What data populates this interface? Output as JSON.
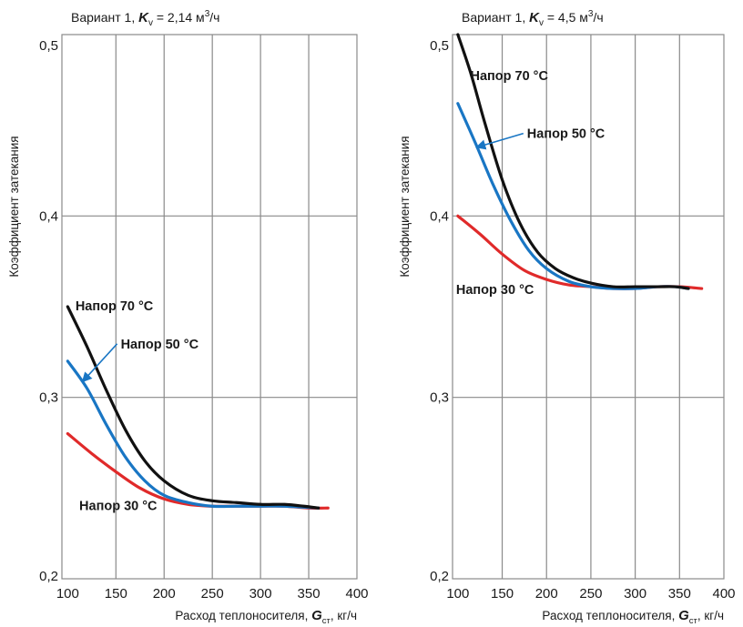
{
  "colors": {
    "series_30": "#e02a2a",
    "series_50": "#1976c4",
    "series_70": "#111111",
    "grid": "#8a8a8a"
  },
  "chart_data": [
    {
      "type": "line",
      "title": "Вариант 1, K",
      "title_parts": {
        "prefix": "Вариант 1, ",
        "var": "K",
        "sub": "v",
        "value": " = 2,14 м",
        "sup": "3",
        "unit": "/ч"
      },
      "xlabel_parts": {
        "prefix": "Расход теплоносителя, ",
        "var": "G",
        "sub": "ст",
        "unit": ", кг/ч"
      },
      "ylabel": "Коэффициент затекания",
      "xlim": [
        94,
        400
      ],
      "ylim": [
        0.2,
        0.5
      ],
      "xticks": [
        "100",
        "150",
        "200",
        "250",
        "300",
        "350",
        "400"
      ],
      "yticks": [
        "0,2",
        "0,3",
        "0,4",
        "0,5"
      ],
      "grid": true,
      "series": [
        {
          "name": "Напор 30 °C",
          "color_key": "series_30",
          "x": [
            100,
            125,
            150,
            175,
            200,
            225,
            250,
            275,
            300,
            325,
            350,
            370
          ],
          "y": [
            0.28,
            0.269,
            0.259,
            0.25,
            0.244,
            0.241,
            0.24,
            0.24,
            0.24,
            0.24,
            0.239,
            0.239
          ]
        },
        {
          "name": "Напор 50 °C",
          "color_key": "series_50",
          "x": [
            100,
            120,
            140,
            160,
            180,
            200,
            225,
            250,
            275,
            300,
            325,
            360
          ],
          "y": [
            0.32,
            0.305,
            0.285,
            0.267,
            0.254,
            0.246,
            0.242,
            0.24,
            0.24,
            0.24,
            0.24,
            0.239
          ]
        },
        {
          "name": "Напор 70 °C",
          "color_key": "series_70",
          "x": [
            100,
            120,
            140,
            160,
            180,
            200,
            225,
            250,
            275,
            300,
            325,
            345,
            360
          ],
          "y": [
            0.35,
            0.328,
            0.304,
            0.282,
            0.265,
            0.254,
            0.246,
            0.243,
            0.242,
            0.241,
            0.241,
            0.24,
            0.239
          ]
        }
      ],
      "annotations": [
        {
          "text": "Напор 70 °C",
          "x": 108,
          "y": 0.348
        },
        {
          "text": "Напор 50 °C",
          "x": 155,
          "y": 0.327,
          "arrow_to": [
            116,
            0.309
          ]
        },
        {
          "text": "Напор 30 °C",
          "x": 112,
          "y": 0.238
        }
      ]
    },
    {
      "type": "line",
      "title": "Вариант 1, K",
      "title_parts": {
        "prefix": "Вариант 1, ",
        "var": "K",
        "sub": "v",
        "value": " = 4,5 м",
        "sup": "3",
        "unit": "/ч"
      },
      "xlabel_parts": {
        "prefix": "Расход теплоносителя, ",
        "var": "G",
        "sub": "ст",
        "unit": ", кг/ч"
      },
      "ylabel": "Коэффициент затекания",
      "xlim": [
        94,
        400
      ],
      "ylim": [
        0.2,
        0.5
      ],
      "xticks": [
        "100",
        "150",
        "200",
        "250",
        "300",
        "350",
        "400"
      ],
      "yticks": [
        "0,2",
        "0,3",
        "0,4",
        "0,5"
      ],
      "grid": true,
      "series": [
        {
          "name": "Напор 30 °C",
          "color_key": "series_30",
          "x": [
            100,
            125,
            150,
            175,
            200,
            225,
            250,
            275,
            300,
            325,
            350,
            375
          ],
          "y": [
            0.4,
            0.39,
            0.379,
            0.37,
            0.365,
            0.362,
            0.361,
            0.36,
            0.36,
            0.361,
            0.361,
            0.36
          ]
        },
        {
          "name": "Напор 50 °C",
          "color_key": "series_50",
          "x": [
            100,
            120,
            140,
            160,
            180,
            200,
            225,
            250,
            275,
            300,
            325,
            345,
            360
          ],
          "y": [
            0.462,
            0.44,
            0.417,
            0.397,
            0.381,
            0.371,
            0.364,
            0.361,
            0.36,
            0.36,
            0.361,
            0.361,
            0.36
          ]
        },
        {
          "name": "Напор 70 °C",
          "color_key": "series_70",
          "x": [
            100,
            115,
            130,
            150,
            170,
            190,
            210,
            230,
            250,
            275,
            300,
            325,
            345,
            360
          ],
          "y": [
            0.5,
            0.478,
            0.452,
            0.42,
            0.396,
            0.38,
            0.371,
            0.366,
            0.363,
            0.361,
            0.361,
            0.361,
            0.361,
            0.36
          ]
        }
      ],
      "annotations": [
        {
          "text": "Напор 70 °C",
          "x": 114,
          "y": 0.475
        },
        {
          "text": "Напор 50 °C",
          "x": 178,
          "y": 0.443,
          "arrow_to": [
            122,
            0.438
          ]
        },
        {
          "text": "Напор 30 °C",
          "x": 98,
          "y": 0.357
        }
      ]
    }
  ]
}
